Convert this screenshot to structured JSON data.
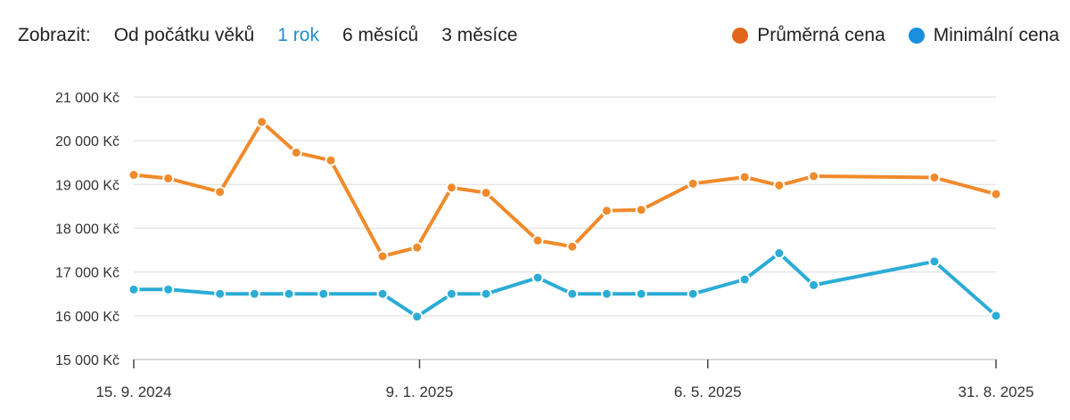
{
  "filter": {
    "label": "Zobrazit:",
    "options": [
      "Od počátku věků",
      "1 rok",
      "6 měsíců",
      "3 měsíce"
    ],
    "active": "1 rok"
  },
  "colors": {
    "accent": "#1f8fce",
    "avg_series": "#f08a2a",
    "min_series": "#2bacd6",
    "avg_legend": "#e0661a",
    "min_legend": "#1a8fe0"
  },
  "chart_data": {
    "type": "line",
    "ylim": [
      15000,
      21000
    ],
    "yticks": [
      15000,
      16000,
      17000,
      18000,
      19000,
      20000,
      21000
    ],
    "ytick_labels": [
      "15 000 Kč",
      "16 000 Kč",
      "17 000 Kč",
      "18 000 Kč",
      "19 000 Kč",
      "20 000 Kč",
      "21 000 Kč"
    ],
    "xlim": [
      "2024-09-15",
      "2025-08-31"
    ],
    "xticks": [
      "2024-09-15",
      "2025-01-09",
      "2025-05-06",
      "2025-08-31"
    ],
    "xtick_labels": [
      "15. 9. 2024",
      "9. 1. 2025",
      "6. 5. 2025",
      "31. 8. 2025"
    ],
    "grid": true,
    "legend_position": "top-right",
    "series": [
      {
        "name": "Průměrná cena",
        "color": "#f08a2a",
        "legend_color": "#e0661a",
        "points": [
          [
            "2024-09-15",
            19220
          ],
          [
            "2024-09-29",
            19140
          ],
          [
            "2024-10-20",
            18830
          ],
          [
            "2024-11-06",
            20430
          ],
          [
            "2024-11-20",
            19730
          ],
          [
            "2024-12-04",
            19550
          ],
          [
            "2024-12-25",
            17360
          ],
          [
            "2025-01-08",
            17560
          ],
          [
            "2025-01-22",
            18930
          ],
          [
            "2025-02-05",
            18810
          ],
          [
            "2025-02-26",
            17720
          ],
          [
            "2025-03-12",
            17580
          ],
          [
            "2025-03-26",
            18400
          ],
          [
            "2025-04-09",
            18420
          ],
          [
            "2025-04-30",
            19020
          ],
          [
            "2025-05-21",
            19170
          ],
          [
            "2025-06-04",
            18980
          ],
          [
            "2025-06-18",
            19190
          ],
          [
            "2025-08-06",
            19160
          ],
          [
            "2025-08-31",
            18780
          ]
        ]
      },
      {
        "name": "Minimální cena",
        "color": "#2bacd6",
        "legend_color": "#1a8fe0",
        "points": [
          [
            "2024-09-15",
            16600
          ],
          [
            "2024-09-29",
            16600
          ],
          [
            "2024-10-20",
            16500
          ],
          [
            "2024-11-03",
            16500
          ],
          [
            "2024-11-17",
            16500
          ],
          [
            "2024-12-01",
            16500
          ],
          [
            "2024-12-25",
            16500
          ],
          [
            "2025-01-08",
            15980
          ],
          [
            "2025-01-22",
            16500
          ],
          [
            "2025-02-05",
            16500
          ],
          [
            "2025-02-26",
            16870
          ],
          [
            "2025-03-12",
            16500
          ],
          [
            "2025-03-26",
            16500
          ],
          [
            "2025-04-09",
            16500
          ],
          [
            "2025-04-30",
            16500
          ],
          [
            "2025-05-21",
            16830
          ],
          [
            "2025-06-04",
            17430
          ],
          [
            "2025-06-18",
            16700
          ],
          [
            "2025-08-06",
            17240
          ],
          [
            "2025-08-31",
            16000
          ]
        ]
      }
    ]
  }
}
